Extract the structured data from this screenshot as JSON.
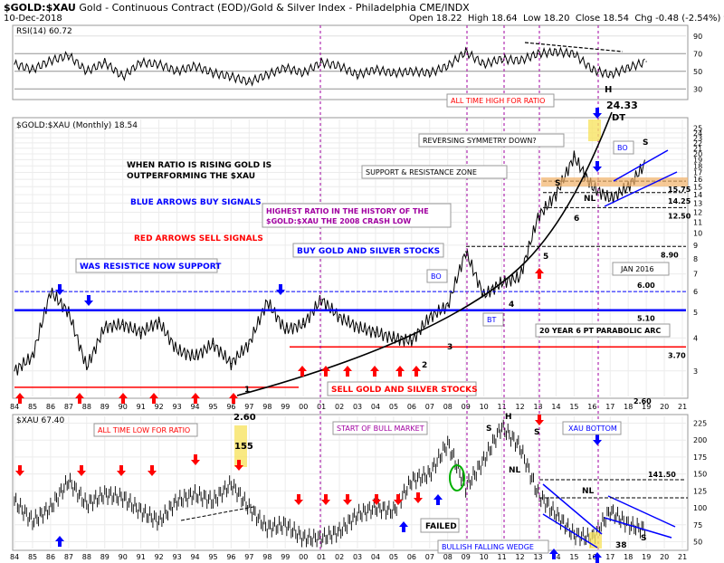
{
  "header": {
    "symbol": "$GOLD:$XAU",
    "description": "Gold - Continuous Contract (EOD)/Gold & Silver Index - Philadelphia CME/INDX",
    "date": "10-Dec-2018",
    "open": "Open 18.22",
    "high": "High 18.64",
    "low": "Low 18.20",
    "close": "Close 18.54",
    "chg": "Chg -0.48 (-2.54%)"
  },
  "colors": {
    "up": "#1a1a1a",
    "grid": "#d9d9d9",
    "red": "#ff0000",
    "blue": "#0000ff",
    "purple": "#a000a0",
    "orange": "#f2b26a",
    "yellow": "#f7e463",
    "green": "#00b000"
  },
  "chart_data": [
    {
      "type": "line",
      "title": "RSI(14) 60.72",
      "y_ticks": [
        "90",
        "70",
        "50",
        "30"
      ],
      "ylim": [
        20,
        100
      ],
      "reference_lines": [
        70,
        50,
        30
      ],
      "x": [
        1984,
        1985,
        1986,
        1987,
        1988,
        1989,
        1990,
        1991,
        1992,
        1993,
        1994,
        1995,
        1996,
        1997,
        1998,
        1999,
        2000,
        2001,
        2002,
        2003,
        2004,
        2005,
        2006,
        2007,
        2008,
        2009,
        2010,
        2011,
        2012,
        2013,
        2014,
        2015,
        2016,
        2017,
        2018,
        2019
      ],
      "values": [
        58,
        52,
        62,
        68,
        50,
        60,
        44,
        60,
        58,
        50,
        56,
        48,
        44,
        38,
        46,
        54,
        48,
        60,
        56,
        46,
        52,
        48,
        50,
        48,
        56,
        72,
        58,
        64,
        62,
        70,
        72,
        70,
        52,
        46,
        54,
        61
      ]
    },
    {
      "type": "line",
      "title": "$GOLD:$XAU (Monthly) 18.54",
      "y_ticks": [
        "25",
        "24",
        "23",
        "22",
        "21",
        "20",
        "19",
        "18",
        "17",
        "16",
        "15",
        "14",
        "13",
        "12",
        "11",
        "10",
        "9",
        "8",
        "7",
        "6",
        "5",
        "4",
        "3"
      ],
      "x_ticks": [
        "84",
        "85",
        "86",
        "87",
        "88",
        "89",
        "90",
        "91",
        "92",
        "93",
        "94",
        "95",
        "96",
        "97",
        "98",
        "99",
        "00",
        "01",
        "02",
        "03",
        "04",
        "05",
        "06",
        "07",
        "08",
        "09",
        "10",
        "11",
        "12",
        "13",
        "14",
        "15",
        "16",
        "17",
        "18",
        "19",
        "20",
        "21"
      ],
      "scale": "log",
      "ylim": [
        2.4,
        27
      ],
      "x": [
        1984,
        1985,
        1986,
        1987,
        1988,
        1989,
        1990,
        1991,
        1992,
        1993,
        1994,
        1995,
        1996,
        1997,
        1998,
        1999,
        2000,
        2001,
        2002,
        2003,
        2004,
        2005,
        2006,
        2007,
        2008,
        2009,
        2010,
        2011,
        2012,
        2013,
        2014,
        2015,
        2016,
        2017,
        2018,
        2019
      ],
      "values": [
        3.0,
        3.4,
        6.0,
        5.0,
        3.1,
        4.4,
        4.5,
        4.2,
        4.6,
        3.6,
        3.4,
        3.8,
        3.2,
        3.8,
        5.5,
        4.3,
        4.5,
        5.6,
        4.8,
        4.4,
        4.2,
        4.0,
        3.9,
        4.8,
        5.3,
        8.5,
        5.8,
        6.5,
        6.8,
        11.5,
        14.0,
        19.5,
        15.0,
        13.5,
        15.0,
        18.54
      ],
      "levels": [
        {
          "label": "15.75",
          "value": 15.75
        },
        {
          "label": "14.25",
          "value": 14.25
        },
        {
          "label": "12.50",
          "value": 12.5
        },
        {
          "label": "8.90",
          "value": 8.9
        },
        {
          "label": "6.00",
          "value": 6.0
        },
        {
          "label": "5.10",
          "value": 5.1
        },
        {
          "label": "3.70",
          "value": 3.7
        },
        {
          "label": "2.60",
          "value": 2.6
        }
      ]
    },
    {
      "type": "bar",
      "title": "$XAU 67.40",
      "y_ticks": [
        "225",
        "200",
        "175",
        "150",
        "125",
        "100",
        "75",
        "50"
      ],
      "x_ticks": [
        "84",
        "85",
        "86",
        "87",
        "88",
        "89",
        "90",
        "91",
        "92",
        "93",
        "94",
        "95",
        "96",
        "97",
        "98",
        "99",
        "00",
        "01",
        "02",
        "03",
        "04",
        "05",
        "06",
        "07",
        "08",
        "09",
        "10",
        "11",
        "12",
        "13",
        "14",
        "15",
        "16",
        "17",
        "18",
        "19",
        "20",
        "21"
      ],
      "ylim": [
        40,
        235
      ],
      "x": [
        1984,
        1985,
        1986,
        1987,
        1988,
        1989,
        1990,
        1991,
        1992,
        1993,
        1994,
        1995,
        1996,
        1997,
        1998,
        1999,
        2000,
        2001,
        2002,
        2003,
        2004,
        2005,
        2006,
        2007,
        2008,
        2009,
        2010,
        2011,
        2012,
        2013,
        2014,
        2015,
        2016,
        2017,
        2018,
        2019
      ],
      "values": [
        110,
        80,
        100,
        140,
        105,
        120,
        115,
        95,
        80,
        110,
        120,
        110,
        135,
        100,
        70,
        75,
        55,
        55,
        65,
        90,
        100,
        95,
        140,
        150,
        195,
        130,
        170,
        220,
        190,
        120,
        90,
        60,
        55,
        95,
        75,
        67
      ],
      "levels": [
        {
          "label": "141.50",
          "value": 141.5
        }
      ]
    }
  ],
  "annotations": {
    "top_panel": [
      {
        "text": "H",
        "cls": "plain"
      },
      {
        "text": "24.33",
        "cls": "plain"
      },
      {
        "text": "DT",
        "cls": "plain"
      }
    ],
    "mid_panel": {
      "all_time_high": "ALL TIME HIGH FOR RATIO",
      "ratio_rising_1": "WHEN RATIO IS RISING GOLD IS",
      "ratio_rising_2": "OUTPERFORMING THE $XAU",
      "blue_arrows": "BLUE ARROWS BUY SIGNALS",
      "red_arrows": "RED ARROWS SELL SIGNALS",
      "reversing": "REVERSING SYMMETRY DOWN?",
      "bo1": "BO",
      "s_label": "S",
      "support_zone": "SUPPORT & RESISTANCE ZONE",
      "s2": "S",
      "nl": "NL",
      "six": "6",
      "highest_ratio_1": "HIGHEST RATIO IN THE HISTORY OF THE",
      "highest_ratio_2": "$GOLD:$XAU THE 2008 CRASH LOW",
      "buy_stocks": "BUY GOLD AND SILVER STOCKS",
      "five": "5",
      "jan2016": "JAN 2016",
      "was_resistance": "WAS RESISTICE NOW SUPPORT",
      "bo2": "BO",
      "four": "4",
      "bt": "BT",
      "parabolic": "20 YEAR 6 PT  PARABOLIC ARC",
      "three": "3",
      "two": "2",
      "sell_stocks": "SELL GOLD AND SILVER STOCKS",
      "one": "1"
    },
    "bottom_panel": {
      "all_time_low": "ALL TIME LOW FOR RATIO",
      "low_value": "2.60",
      "start_bull": "START OF BULL MARKET",
      "xau_bottom": "XAU BOTTOM",
      "h": "H",
      "s1": "S",
      "s2": "S",
      "nl1": "NL",
      "nl2": "NL",
      "s3": "S",
      "value_155": "155",
      "failed": "FAILED",
      "wedge": "BULLISH FALLING WEDGE",
      "value_38": "38"
    }
  }
}
